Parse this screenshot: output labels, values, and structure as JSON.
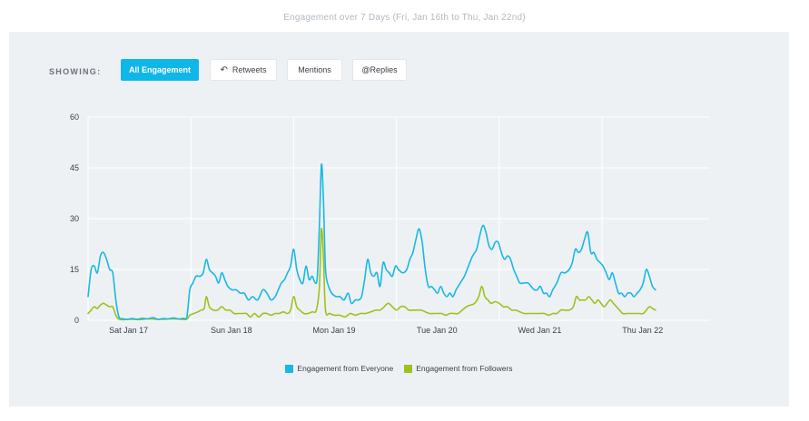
{
  "page_title": "Engagement over 7 Days (Fri, Jan 16th to Thu, Jan 22nd)",
  "filters": {
    "label": "SHOWING:",
    "buttons": [
      {
        "label": "All Engagement",
        "active": true,
        "icon": ""
      },
      {
        "label": "Retweets",
        "active": false,
        "icon": "retweet-icon"
      },
      {
        "label": "Mentions",
        "active": false,
        "icon": ""
      },
      {
        "label": "@Replies",
        "active": false,
        "icon": ""
      }
    ]
  },
  "colors": {
    "everyone": "#18b8e6",
    "followers": "#9cc31b",
    "grid": "#ffffff",
    "panel": "#eef1f4",
    "accent": "#0fb7e8"
  },
  "chart_data": {
    "type": "line",
    "title": "",
    "xlabel": "",
    "ylabel": "",
    "ylim": [
      0,
      60
    ],
    "yticks": [
      0,
      15,
      30,
      45,
      60
    ],
    "xlim": [
      0,
      6.05
    ],
    "x_tick_labels": [
      {
        "x": 0.5,
        "label": "Sat Jan 17"
      },
      {
        "x": 1.5,
        "label": "Sun Jan 18"
      },
      {
        "x": 2.5,
        "label": "Mon Jan 19"
      },
      {
        "x": 3.5,
        "label": "Tue Jan 20"
      },
      {
        "x": 4.5,
        "label": "Wed Jan 21"
      },
      {
        "x": 5.5,
        "label": "Thu Jan 22"
      }
    ],
    "grid": true,
    "legend_position": "bottom-center",
    "series": [
      {
        "name": "Engagement from Everyone",
        "points": [
          [
            0.0,
            7
          ],
          [
            0.03,
            15
          ],
          [
            0.06,
            16
          ],
          [
            0.09,
            14
          ],
          [
            0.12,
            19
          ],
          [
            0.15,
            20
          ],
          [
            0.18,
            18
          ],
          [
            0.21,
            15
          ],
          [
            0.24,
            14
          ],
          [
            0.27,
            6
          ],
          [
            0.3,
            1
          ],
          [
            0.33,
            0.5
          ],
          [
            0.38,
            0.3
          ],
          [
            0.43,
            0.5
          ],
          [
            0.48,
            0.3
          ],
          [
            0.53,
            0.6
          ],
          [
            0.58,
            0.4
          ],
          [
            0.63,
            0.8
          ],
          [
            0.68,
            0.3
          ],
          [
            0.73,
            0.5
          ],
          [
            0.78,
            0.4
          ],
          [
            0.83,
            0.7
          ],
          [
            0.88,
            0.4
          ],
          [
            0.93,
            0.6
          ],
          [
            0.96,
            0.8
          ],
          [
            0.99,
            9
          ],
          [
            1.02,
            11
          ],
          [
            1.05,
            13
          ],
          [
            1.09,
            13
          ],
          [
            1.12,
            14
          ],
          [
            1.15,
            18
          ],
          [
            1.18,
            15
          ],
          [
            1.21,
            14
          ],
          [
            1.24,
            13
          ],
          [
            1.27,
            11
          ],
          [
            1.3,
            14
          ],
          [
            1.33,
            12
          ],
          [
            1.36,
            10
          ],
          [
            1.4,
            9
          ],
          [
            1.44,
            9
          ],
          [
            1.48,
            8
          ],
          [
            1.52,
            8
          ],
          [
            1.56,
            6
          ],
          [
            1.6,
            7
          ],
          [
            1.65,
            6
          ],
          [
            1.7,
            9
          ],
          [
            1.74,
            8
          ],
          [
            1.78,
            6
          ],
          [
            1.82,
            7
          ],
          [
            1.85,
            9
          ],
          [
            1.88,
            11
          ],
          [
            1.91,
            12
          ],
          [
            1.94,
            14
          ],
          [
            1.97,
            16
          ],
          [
            2.0,
            21
          ],
          [
            2.03,
            15
          ],
          [
            2.06,
            12
          ],
          [
            2.09,
            11
          ],
          [
            2.12,
            16
          ],
          [
            2.15,
            12
          ],
          [
            2.18,
            13
          ],
          [
            2.21,
            11
          ],
          [
            2.23,
            13
          ],
          [
            2.25,
            28
          ],
          [
            2.27,
            46
          ],
          [
            2.29,
            35
          ],
          [
            2.31,
            15
          ],
          [
            2.34,
            10
          ],
          [
            2.37,
            8
          ],
          [
            2.41,
            7
          ],
          [
            2.45,
            7
          ],
          [
            2.49,
            6
          ],
          [
            2.53,
            8
          ],
          [
            2.56,
            5
          ],
          [
            2.6,
            6
          ],
          [
            2.63,
            6
          ],
          [
            2.66,
            7
          ],
          [
            2.69,
            12
          ],
          [
            2.72,
            18
          ],
          [
            2.75,
            14
          ],
          [
            2.78,
            13
          ],
          [
            2.81,
            14
          ],
          [
            2.84,
            10
          ],
          [
            2.87,
            17
          ],
          [
            2.9,
            15
          ],
          [
            2.93,
            14
          ],
          [
            2.96,
            13
          ],
          [
            2.99,
            16
          ],
          [
            3.02,
            15
          ],
          [
            3.06,
            14
          ],
          [
            3.1,
            15
          ],
          [
            3.13,
            18
          ],
          [
            3.16,
            20
          ],
          [
            3.19,
            24
          ],
          [
            3.22,
            27
          ],
          [
            3.25,
            23
          ],
          [
            3.28,
            15
          ],
          [
            3.31,
            10
          ],
          [
            3.34,
            10
          ],
          [
            3.37,
            9
          ],
          [
            3.4,
            8
          ],
          [
            3.43,
            10
          ],
          [
            3.46,
            8
          ],
          [
            3.49,
            7
          ],
          [
            3.52,
            8
          ],
          [
            3.55,
            7
          ],
          [
            3.58,
            9
          ],
          [
            3.62,
            11
          ],
          [
            3.66,
            13
          ],
          [
            3.7,
            16
          ],
          [
            3.74,
            19
          ],
          [
            3.78,
            21
          ],
          [
            3.81,
            25
          ],
          [
            3.84,
            28
          ],
          [
            3.87,
            26
          ],
          [
            3.9,
            22
          ],
          [
            3.93,
            21
          ],
          [
            3.96,
            23
          ],
          [
            3.99,
            23
          ],
          [
            4.02,
            20
          ],
          [
            4.05,
            18
          ],
          [
            4.08,
            19
          ],
          [
            4.11,
            18
          ],
          [
            4.14,
            15
          ],
          [
            4.17,
            13
          ],
          [
            4.2,
            11
          ],
          [
            4.24,
            11
          ],
          [
            4.28,
            11
          ],
          [
            4.31,
            10
          ],
          [
            4.34,
            9
          ],
          [
            4.37,
            9
          ],
          [
            4.4,
            10
          ],
          [
            4.43,
            8
          ],
          [
            4.46,
            8
          ],
          [
            4.49,
            7
          ],
          [
            4.52,
            9
          ],
          [
            4.56,
            11
          ],
          [
            4.6,
            14
          ],
          [
            4.64,
            14
          ],
          [
            4.68,
            15
          ],
          [
            4.71,
            17
          ],
          [
            4.74,
            21
          ],
          [
            4.77,
            20
          ],
          [
            4.8,
            21
          ],
          [
            4.83,
            24
          ],
          [
            4.86,
            26
          ],
          [
            4.89,
            20
          ],
          [
            4.92,
            20
          ],
          [
            4.95,
            18
          ],
          [
            4.98,
            17
          ],
          [
            5.01,
            16
          ],
          [
            5.04,
            14
          ],
          [
            5.07,
            12
          ],
          [
            5.1,
            14
          ],
          [
            5.13,
            11
          ],
          [
            5.16,
            8
          ],
          [
            5.19,
            8
          ],
          [
            5.22,
            7
          ],
          [
            5.25,
            8
          ],
          [
            5.28,
            8
          ],
          [
            5.31,
            7
          ],
          [
            5.34,
            8
          ],
          [
            5.37,
            9
          ],
          [
            5.4,
            11
          ],
          [
            5.43,
            15
          ],
          [
            5.46,
            13
          ],
          [
            5.49,
            10
          ],
          [
            5.52,
            9
          ]
        ]
      },
      {
        "name": "Engagement from Followers",
        "points": [
          [
            0.0,
            2
          ],
          [
            0.03,
            3
          ],
          [
            0.06,
            4
          ],
          [
            0.09,
            3.5
          ],
          [
            0.12,
            4.5
          ],
          [
            0.15,
            5
          ],
          [
            0.18,
            4.5
          ],
          [
            0.21,
            4
          ],
          [
            0.24,
            4
          ],
          [
            0.27,
            1.5
          ],
          [
            0.3,
            0.3
          ],
          [
            0.35,
            0.2
          ],
          [
            0.42,
            0.3
          ],
          [
            0.5,
            0.2
          ],
          [
            0.58,
            0.4
          ],
          [
            0.66,
            0.3
          ],
          [
            0.74,
            0.3
          ],
          [
            0.82,
            0.4
          ],
          [
            0.9,
            0.3
          ],
          [
            0.96,
            0.3
          ],
          [
            0.99,
            1.5
          ],
          [
            1.03,
            2
          ],
          [
            1.07,
            2.5
          ],
          [
            1.1,
            3
          ],
          [
            1.13,
            3.5
          ],
          [
            1.15,
            7
          ],
          [
            1.18,
            4
          ],
          [
            1.22,
            3
          ],
          [
            1.26,
            3
          ],
          [
            1.3,
            4
          ],
          [
            1.34,
            3
          ],
          [
            1.38,
            3
          ],
          [
            1.42,
            2
          ],
          [
            1.46,
            2
          ],
          [
            1.5,
            2
          ],
          [
            1.54,
            2
          ],
          [
            1.58,
            1
          ],
          [
            1.62,
            2
          ],
          [
            1.66,
            1
          ],
          [
            1.7,
            2
          ],
          [
            1.74,
            2
          ],
          [
            1.78,
            1.5
          ],
          [
            1.82,
            2
          ],
          [
            1.86,
            2
          ],
          [
            1.9,
            2.5
          ],
          [
            1.94,
            2
          ],
          [
            1.97,
            3
          ],
          [
            2.0,
            7
          ],
          [
            2.03,
            4
          ],
          [
            2.06,
            3
          ],
          [
            2.1,
            2
          ],
          [
            2.14,
            2
          ],
          [
            2.18,
            2.5
          ],
          [
            2.22,
            3
          ],
          [
            2.25,
            10
          ],
          [
            2.27,
            27
          ],
          [
            2.29,
            18
          ],
          [
            2.31,
            3
          ],
          [
            2.35,
            2
          ],
          [
            2.4,
            1.5
          ],
          [
            2.45,
            1.5
          ],
          [
            2.5,
            1
          ],
          [
            2.55,
            2
          ],
          [
            2.6,
            1.5
          ],
          [
            2.65,
            2
          ],
          [
            2.7,
            2
          ],
          [
            2.75,
            2.5
          ],
          [
            2.8,
            3
          ],
          [
            2.84,
            3
          ],
          [
            2.88,
            4
          ],
          [
            2.92,
            5
          ],
          [
            2.96,
            4
          ],
          [
            3.0,
            3
          ],
          [
            3.04,
            4
          ],
          [
            3.08,
            4
          ],
          [
            3.12,
            3
          ],
          [
            3.16,
            3
          ],
          [
            3.2,
            3
          ],
          [
            3.24,
            3
          ],
          [
            3.28,
            2.5
          ],
          [
            3.32,
            2
          ],
          [
            3.36,
            2
          ],
          [
            3.4,
            2
          ],
          [
            3.44,
            2
          ],
          [
            3.48,
            1.5
          ],
          [
            3.52,
            2
          ],
          [
            3.56,
            2
          ],
          [
            3.6,
            2
          ],
          [
            3.64,
            3
          ],
          [
            3.68,
            4
          ],
          [
            3.72,
            4.5
          ],
          [
            3.76,
            5
          ],
          [
            3.8,
            7
          ],
          [
            3.83,
            10
          ],
          [
            3.86,
            7
          ],
          [
            3.89,
            6
          ],
          [
            3.92,
            5
          ],
          [
            3.96,
            5.5
          ],
          [
            4.0,
            5
          ],
          [
            4.04,
            4
          ],
          [
            4.08,
            4
          ],
          [
            4.12,
            3
          ],
          [
            4.16,
            3
          ],
          [
            4.2,
            2.5
          ],
          [
            4.24,
            2
          ],
          [
            4.28,
            2
          ],
          [
            4.32,
            2
          ],
          [
            4.36,
            2
          ],
          [
            4.4,
            2
          ],
          [
            4.44,
            2
          ],
          [
            4.48,
            1.5
          ],
          [
            4.52,
            2
          ],
          [
            4.56,
            2
          ],
          [
            4.6,
            3
          ],
          [
            4.64,
            3
          ],
          [
            4.68,
            3
          ],
          [
            4.72,
            4
          ],
          [
            4.75,
            7
          ],
          [
            4.78,
            6
          ],
          [
            4.81,
            6
          ],
          [
            4.84,
            6
          ],
          [
            4.87,
            7
          ],
          [
            4.9,
            6
          ],
          [
            4.93,
            5
          ],
          [
            4.96,
            6
          ],
          [
            4.99,
            5
          ],
          [
            5.02,
            4
          ],
          [
            5.05,
            5
          ],
          [
            5.08,
            6
          ],
          [
            5.11,
            5
          ],
          [
            5.14,
            4
          ],
          [
            5.17,
            3
          ],
          [
            5.2,
            2
          ],
          [
            5.24,
            2
          ],
          [
            5.28,
            2
          ],
          [
            5.32,
            2
          ],
          [
            5.36,
            2
          ],
          [
            5.4,
            2
          ],
          [
            5.43,
            3
          ],
          [
            5.46,
            4
          ],
          [
            5.49,
            3.5
          ],
          [
            5.52,
            3
          ]
        ]
      }
    ]
  }
}
